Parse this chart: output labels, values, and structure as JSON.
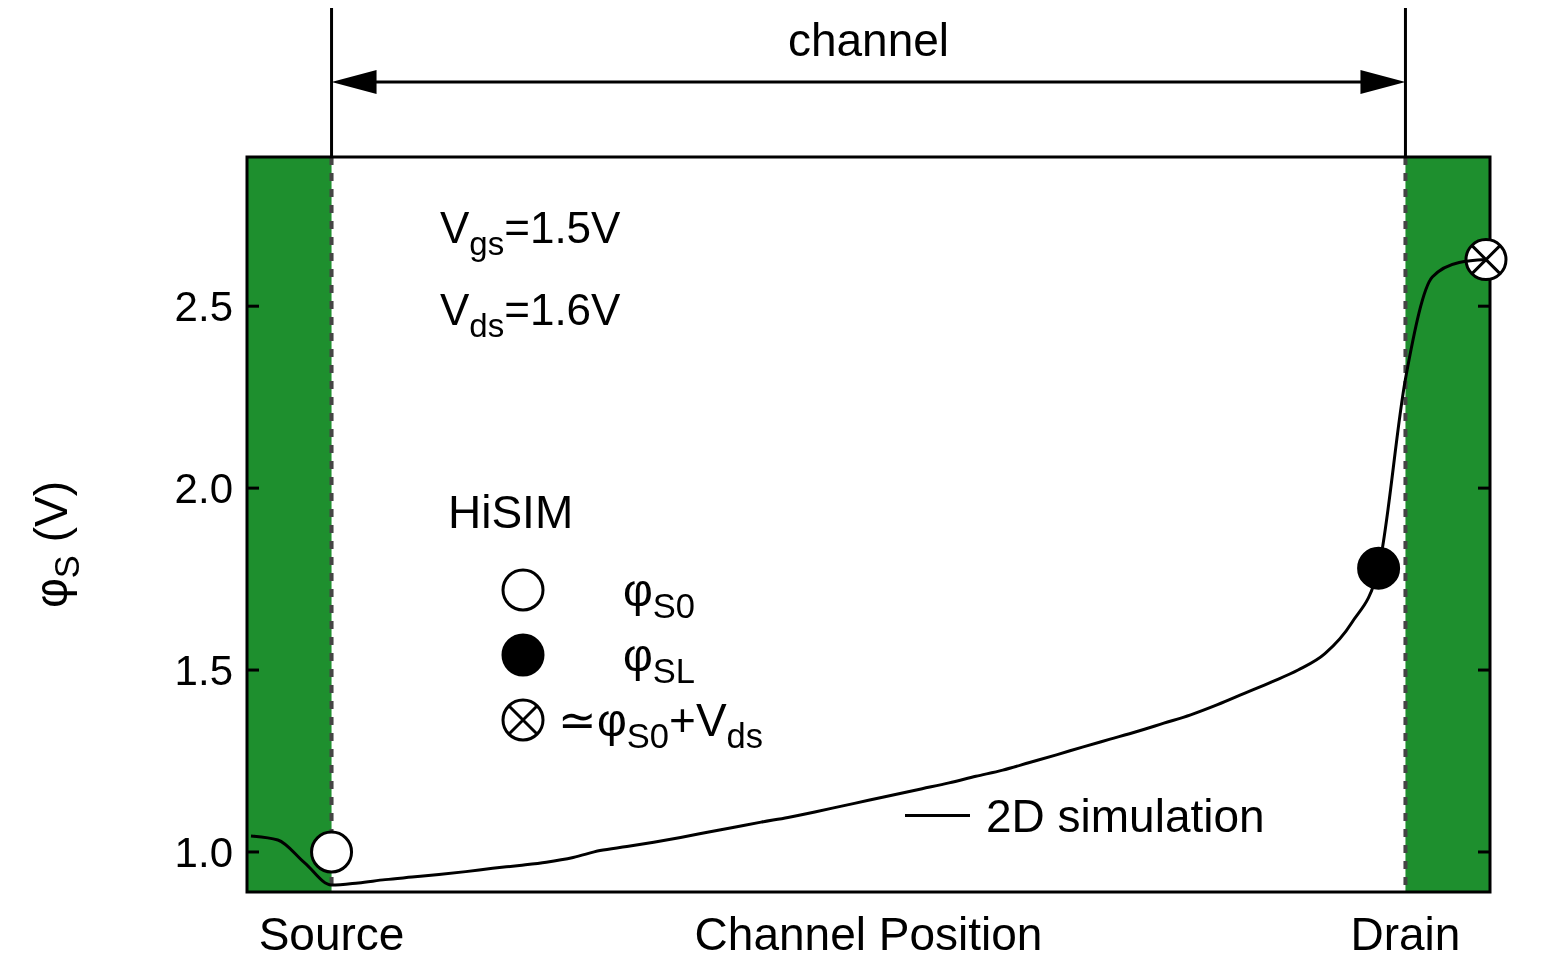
{
  "chart_data": {
    "type": "line",
    "xlabel": "Channel Position",
    "ylabel": "φ$_{S}$ (V)",
    "legend_title": "HiSIM",
    "legend": "left",
    "categories": [
      null,
      null,
      null,
      "Source",
      null,
      null,
      null,
      null,
      null,
      null,
      null,
      null,
      null,
      null,
      null,
      null,
      null,
      null,
      null,
      null,
      null,
      null,
      null,
      null,
      null,
      null,
      null,
      null,
      null,
      null,
      null,
      null,
      null,
      null,
      null,
      null,
      null,
      null,
      null,
      null,
      null,
      null,
      null,
      "Drain",
      null,
      null,
      null
    ],
    "ylim": [
      0.89,
      2.91
    ],
    "yticks": [
      {
        "value": 1,
        "label": "1.0"
      },
      {
        "value": 1.5,
        "label": "1.5"
      },
      {
        "value": 2,
        "label": "2.0"
      },
      {
        "value": 2.5,
        "label": "2.5"
      }
    ],
    "annotations": [
      "channel",
      "V$_{gs}$=1.5V",
      "V$_{ds}$=1.6V"
    ],
    "series": [
      {
        "name": "2D simulation",
        "color": "#000000",
        "values": [
          1.044,
          1.033,
          0.97,
          0.909,
          0.915,
          0.924,
          0.931,
          0.938,
          0.946,
          0.955,
          0.963,
          0.972,
          0.985,
          1.004,
          1.015,
          1.027,
          1.04,
          1.054,
          1.068,
          1.082,
          1.095,
          1.11,
          1.126,
          1.142,
          1.158,
          1.174,
          1.19,
          1.208,
          1.225,
          1.246,
          1.267,
          1.289,
          1.31,
          1.331,
          1.354,
          1.377,
          1.405,
          1.436,
          1.467,
          1.5,
          1.545,
          1.63,
          1.78,
          2.3,
          2.58,
          2.62,
          2.628
        ]
      },
      {
        "name": "φ$_{S0}$",
        "type": "scatter",
        "marker": "circle",
        "color": "#ffffff",
        "values": [
          null,
          null,
          null,
          1.0,
          null,
          null,
          null,
          null,
          null,
          null,
          null,
          null,
          null,
          null,
          null,
          null,
          null,
          null,
          null,
          null,
          null,
          null,
          null,
          null,
          null,
          null,
          null,
          null,
          null,
          null,
          null,
          null,
          null,
          null,
          null,
          null,
          null,
          null,
          null,
          null,
          null,
          null,
          null,
          null,
          null,
          null,
          null
        ]
      },
      {
        "name": "φ$_{SL}$",
        "type": "scatter",
        "marker": "circle",
        "color": "#000000",
        "values": [
          null,
          null,
          null,
          null,
          null,
          null,
          null,
          null,
          null,
          null,
          null,
          null,
          null,
          null,
          null,
          null,
          null,
          null,
          null,
          null,
          null,
          null,
          null,
          null,
          null,
          null,
          null,
          null,
          null,
          null,
          null,
          null,
          null,
          null,
          null,
          null,
          null,
          null,
          null,
          null,
          null,
          null,
          1.78,
          null,
          null,
          null,
          null
        ]
      },
      {
        "name": "≃φ$_{S0}$+V$_{ds}$",
        "type": "scatter",
        "color": "#ffffff",
        "values": [
          null,
          null,
          null,
          null,
          null,
          null,
          null,
          null,
          null,
          null,
          null,
          null,
          null,
          null,
          null,
          null,
          null,
          null,
          null,
          null,
          null,
          null,
          null,
          null,
          null,
          null,
          null,
          null,
          null,
          null,
          null,
          null,
          null,
          null,
          null,
          null,
          null,
          null,
          null,
          null,
          null,
          null,
          null,
          null,
          null,
          null,
          2.628
        ]
      }
    ]
  }
}
